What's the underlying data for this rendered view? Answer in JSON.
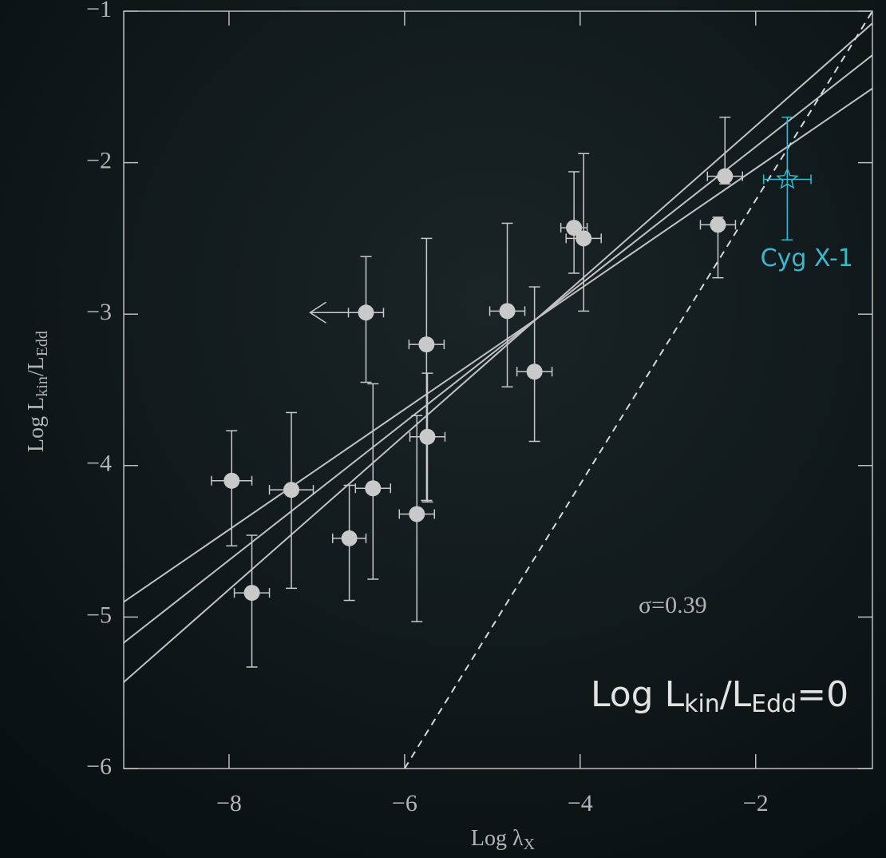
{
  "chart_data": {
    "type": "scatter",
    "xlabel": [
      "Log λ",
      "X"
    ],
    "ylabel": [
      "Log L",
      "kin",
      "/L",
      "Edd"
    ],
    "xlim": [
      -9.2,
      -0.67
    ],
    "ylim": [
      -6,
      -1
    ],
    "xticks": [
      {
        "value": -8,
        "label": "−8"
      },
      {
        "value": -6,
        "label": "−6"
      },
      {
        "value": -4,
        "label": "−4"
      },
      {
        "value": -2,
        "label": "−2"
      }
    ],
    "yticks": [
      {
        "value": -6,
        "label": "−6"
      },
      {
        "value": -5,
        "label": "−5"
      },
      {
        "value": -4,
        "label": "−4"
      },
      {
        "value": -3,
        "label": "−3"
      },
      {
        "value": -2,
        "label": "−2"
      },
      {
        "value": -1,
        "label": "−1"
      }
    ],
    "series": [
      {
        "color": "#c9c9c9",
        "marker": "circle",
        "x": [
          -7.97,
          -7.74,
          -7.29,
          -6.63,
          -6.44,
          -6.36,
          -5.86,
          -5.75,
          -5.74,
          -4.83,
          -4.52,
          -4.07,
          -3.96,
          -2.43,
          -2.35
        ],
        "values": [
          -4.1,
          -4.84,
          -4.16,
          -4.48,
          -2.99,
          -4.15,
          -4.32,
          -3.2,
          -3.81,
          -2.98,
          -3.38,
          -2.43,
          -2.5,
          -2.41,
          -2.09
        ],
        "xerr": [
          0.23,
          0.2,
          0.25,
          0.19,
          0.2,
          0.2,
          0.2,
          0.2,
          0.2,
          0.2,
          0.2,
          0.15,
          0.2,
          0.2,
          0.2
        ],
        "yerr_minus": [
          0.43,
          0.49,
          0.65,
          0.41,
          0.46,
          0.6,
          0.71,
          1.03,
          0.43,
          0.5,
          0.46,
          0.3,
          0.48,
          0.35,
          0.05
        ],
        "yerr_plus": [
          0.33,
          0.38,
          0.51,
          0.35,
          0.37,
          0.69,
          0.65,
          0.7,
          0.42,
          0.58,
          0.56,
          0.37,
          0.56,
          0.05,
          0.39
        ],
        "x_upper_limit": [
          false,
          false,
          false,
          false,
          true,
          false,
          false,
          false,
          false,
          false,
          false,
          false,
          false,
          false,
          false
        ]
      },
      {
        "name": "Cyg X-1",
        "color": "#3ab8cf",
        "marker": "star",
        "x": [
          -1.64
        ],
        "values": [
          -2.11
        ],
        "xerr": [
          0.27
        ],
        "yerr_minus": [
          0.4
        ],
        "yerr_plus": [
          0.41
        ],
        "x_upper_limit": [
          false
        ]
      }
    ],
    "lines": [
      {
        "x": [
          -9.2,
          -0.67
        ],
        "y": [
          -5.43,
          -1.08
        ],
        "color": "#c2c2c2",
        "dashed": false
      },
      {
        "x": [
          -9.2,
          -0.67
        ],
        "y": [
          -5.17,
          -1.29
        ],
        "color": "#c2c2c2",
        "dashed": false
      },
      {
        "x": [
          -9.2,
          -0.67
        ],
        "y": [
          -4.9,
          -1.51
        ],
        "color": "#c2c2c2",
        "dashed": false
      },
      {
        "x": [
          -6.0,
          -0.67
        ],
        "y": [
          -6.0,
          -1.0
        ],
        "color": "#d8d8d8",
        "dashed": true
      }
    ],
    "annotations": {
      "sigma": "σ=0.39",
      "equation": [
        "Log L",
        "kin",
        "/L",
        "Edd",
        "=0"
      ]
    }
  }
}
